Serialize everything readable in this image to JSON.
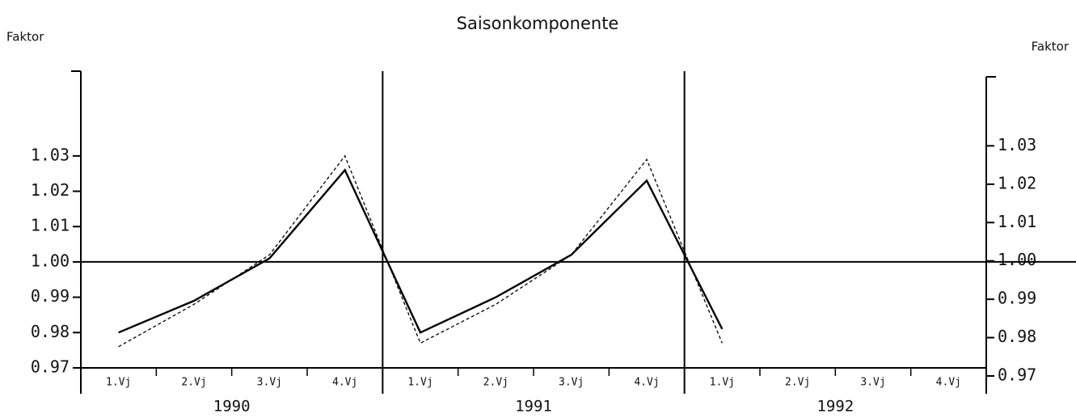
{
  "chart_data": {
    "type": "line",
    "title": "Saisonkomponente",
    "y_label": "Faktor",
    "y2_label": "Faktor",
    "categories": [
      "1.Vj",
      "2.Vj",
      "3.Vj",
      "4.Vj",
      "1.Vj",
      "2.Vj",
      "3.Vj",
      "4.Vj",
      "1.Vj",
      "2.Vj",
      "3.Vj",
      "4.Vj"
    ],
    "years": [
      "1990",
      "1991",
      "1992"
    ],
    "series": [
      {
        "color": "#000000",
        "style": "solid",
        "values": [
          0.98,
          0.989,
          1.001,
          1.026,
          0.98,
          0.99,
          1.002,
          1.023,
          0.981,
          null,
          null,
          null
        ]
      },
      {
        "color": "#000000",
        "style": "dashed",
        "values": [
          0.976,
          0.988,
          1.002,
          1.03,
          0.977,
          0.988,
          1.002,
          1.029,
          0.977,
          null,
          null,
          null
        ]
      }
    ],
    "ylim": [
      0.97,
      1.054
    ],
    "yticks": [
      0.97,
      0.98,
      0.99,
      {
        "value": 1,
        "label": "1.00"
      },
      1.01,
      1.02,
      1.03
    ],
    "y2lim": [
      0.97,
      1.048
    ],
    "y2ticks": [
      0.97,
      0.98,
      0.99,
      {
        "value": 1,
        "label": "1.00"
      },
      1.01,
      1.02,
      1.03
    ],
    "reference_line_tick": 3
  }
}
